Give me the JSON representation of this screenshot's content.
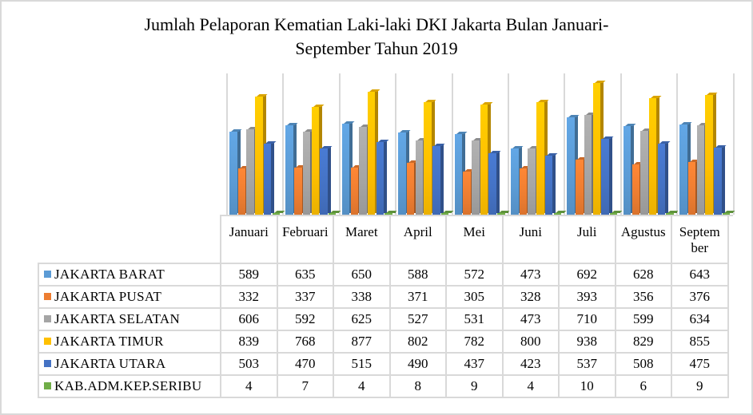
{
  "chart_data": {
    "type": "bar",
    "subtype": "3d-clustered-column-with-data-table",
    "title": "Jumlah Pelaporan Kematian Laki-laki  DKI Jakarta Bulan Januari-September Tahun 2019",
    "title_lines": [
      "Jumlah Pelaporan Kematian Laki-laki  DKI Jakarta Bulan Januari-",
      "September Tahun 2019"
    ],
    "xlabel": "",
    "ylabel": "",
    "ylim": [
      0,
      1000
    ],
    "grid": "vertical category separators only",
    "legend_position": "data table (left column)",
    "categories": [
      "Januari",
      "Februari",
      "Maret",
      "April",
      "Mei",
      "Juni",
      "Juli",
      "Agustus",
      "Septem ber"
    ],
    "series": [
      {
        "name": "JAKARTA BARAT",
        "color": "#5b9bd5",
        "values": [
          589,
          635,
          650,
          588,
          572,
          473,
          692,
          628,
          643
        ]
      },
      {
        "name": "JAKARTA PUSAT",
        "color": "#ed7d31",
        "values": [
          332,
          337,
          338,
          371,
          305,
          328,
          393,
          356,
          376
        ]
      },
      {
        "name": "JAKARTA SELATAN",
        "color": "#a5a5a5",
        "values": [
          606,
          592,
          625,
          527,
          531,
          473,
          710,
          599,
          634
        ]
      },
      {
        "name": "JAKARTA TIMUR",
        "color": "#ffc000",
        "values": [
          839,
          768,
          877,
          802,
          782,
          800,
          938,
          829,
          855
        ]
      },
      {
        "name": "JAKARTA UTARA",
        "color": "#4472c4",
        "values": [
          503,
          470,
          515,
          490,
          437,
          423,
          537,
          508,
          475
        ]
      },
      {
        "name": "KAB.ADM.KEP.SERIBU",
        "color": "#70ad47",
        "values": [
          4,
          7,
          4,
          8,
          9,
          4,
          10,
          6,
          9
        ]
      }
    ]
  }
}
